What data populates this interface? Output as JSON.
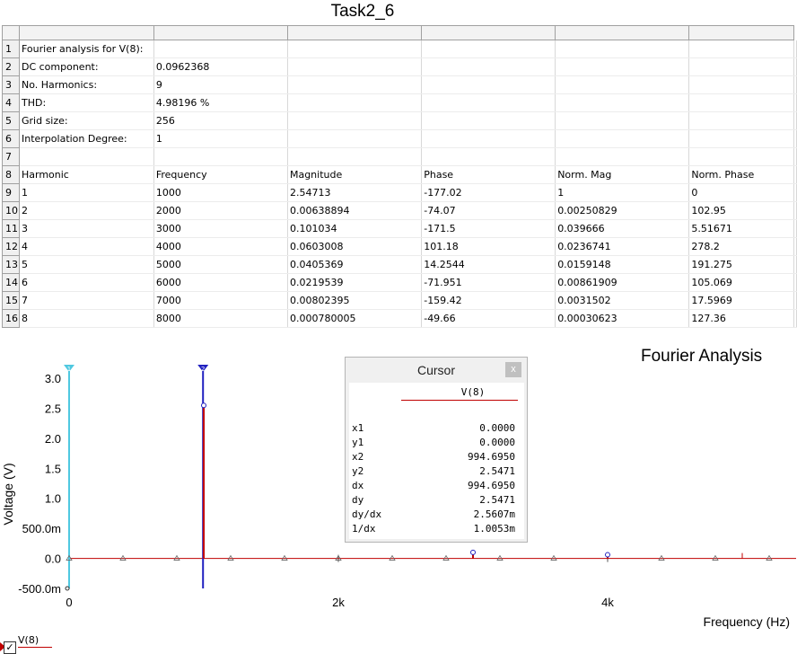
{
  "window_title": "Task2_6",
  "table": {
    "row_numbers": [
      "1",
      "2",
      "3",
      "4",
      "5",
      "6",
      "7",
      "8",
      "9",
      "10",
      "11",
      "12",
      "13",
      "14",
      "15",
      "16"
    ],
    "rows": [
      [
        "Fourier analysis for V(8):",
        "",
        "",
        "",
        "",
        ""
      ],
      [
        "DC component:",
        "0.0962368",
        "",
        "",
        "",
        ""
      ],
      [
        "No. Harmonics:",
        "9",
        "",
        "",
        "",
        ""
      ],
      [
        "THD:",
        "4.98196 %",
        "",
        "",
        "",
        ""
      ],
      [
        "Grid size:",
        "256",
        "",
        "",
        "",
        ""
      ],
      [
        "Interpolation Degree:",
        "1",
        "",
        "",
        "",
        ""
      ],
      [
        "",
        "",
        "",
        "",
        "",
        ""
      ],
      [
        "Harmonic",
        "Frequency",
        "Magnitude",
        "Phase",
        "Norm. Mag",
        "Norm. Phase"
      ],
      [
        "1",
        "1000",
        "2.54713",
        "-177.02",
        "1",
        "0"
      ],
      [
        "2",
        "2000",
        "0.00638894",
        "-74.07",
        "0.00250829",
        "102.95"
      ],
      [
        "3",
        "3000",
        "0.101034",
        "-171.5",
        "0.039666",
        "5.51671"
      ],
      [
        "4",
        "4000",
        "0.0603008",
        "101.18",
        "0.0236741",
        "278.2"
      ],
      [
        "5",
        "5000",
        "0.0405369",
        "14.2544",
        "0.0159148",
        "191.275"
      ],
      [
        "6",
        "6000",
        "0.0219539",
        "-71.951",
        "0.00861909",
        "105.069"
      ],
      [
        "7",
        "7000",
        "0.00802395",
        "-159.42",
        "0.0031502",
        "17.5969"
      ],
      [
        "8",
        "8000",
        "0.000780005",
        "-49.66",
        "0.00030623",
        "127.36"
      ]
    ]
  },
  "chart_data": {
    "type": "bar",
    "title": "Fourier Analysis",
    "xlabel": "Frequency (Hz)",
    "ylabel": "Voltage (V)",
    "xlim": [
      0,
      5400
    ],
    "ylim": [
      -0.5,
      3.0
    ],
    "x_ticks": [
      {
        "v": 0,
        "label": "0"
      },
      {
        "v": 2000,
        "label": "2k"
      },
      {
        "v": 4000,
        "label": "4k"
      }
    ],
    "y_ticks": [
      {
        "v": 3.0,
        "label": "3.0"
      },
      {
        "v": 2.5,
        "label": "2.5"
      },
      {
        "v": 2.0,
        "label": "2.0"
      },
      {
        "v": 1.5,
        "label": "1.5"
      },
      {
        "v": 1.0,
        "label": "1.0"
      },
      {
        "v": 0.5,
        "label": "500.0m"
      },
      {
        "v": 0.0,
        "label": "0.0"
      },
      {
        "v": -0.5,
        "label": "-500.0m"
      }
    ],
    "series": [
      {
        "name": "V(8)",
        "color": "#c00000",
        "x": [
          0,
          400,
          800,
          1000,
          1200,
          1600,
          2000,
          2400,
          2800,
          3000,
          3200,
          3600,
          4000,
          4400,
          4800,
          5200
        ],
        "values": [
          0.0,
          0.0,
          0.0,
          2.547,
          0.0,
          0.0,
          0.006,
          0.0,
          0.0,
          0.101,
          0.0,
          0.0,
          0.06,
          0.0,
          0.0,
          0.0
        ]
      }
    ],
    "cursors": [
      {
        "id": "1",
        "x": 0,
        "color": "#4fc8e0"
      },
      {
        "id": "2",
        "x": 994.695,
        "color": "#2020c0"
      }
    ],
    "legend_placement": "bottom-left"
  },
  "cursor_panel": {
    "title": "Cursor",
    "close": "x",
    "series": "V(8)",
    "rows": [
      {
        "k": "x1",
        "v": "0.0000"
      },
      {
        "k": "y1",
        "v": "0.0000"
      },
      {
        "k": "x2",
        "v": "994.6950"
      },
      {
        "k": "y2",
        "v": "2.5471"
      },
      {
        "k": "dx",
        "v": "994.6950"
      },
      {
        "k": "dy",
        "v": "2.5471"
      },
      {
        "k": "dy/dx",
        "v": "2.5607m"
      },
      {
        "k": "1/dx",
        "v": "1.0053m"
      }
    ]
  },
  "legend": {
    "label": "V(8)",
    "checked": "✓"
  }
}
